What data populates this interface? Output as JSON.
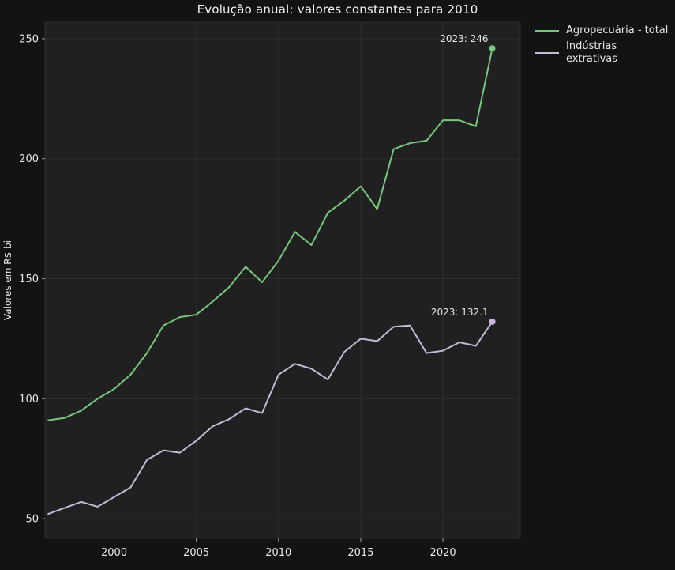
{
  "chart_data": {
    "type": "line",
    "title": "Evolução anual: valores constantes para 2010",
    "ylabel": "Valores em R$ bi",
    "xlabel": "",
    "x": [
      1996,
      1997,
      1998,
      1999,
      2000,
      2001,
      2002,
      2003,
      2004,
      2005,
      2006,
      2007,
      2008,
      2009,
      2010,
      2011,
      2012,
      2013,
      2014,
      2015,
      2016,
      2017,
      2018,
      2019,
      2020,
      2021,
      2022,
      2023
    ],
    "series": [
      {
        "name": "Agropecuária - total",
        "color": "#77c77d",
        "values": [
          91,
          92,
          95,
          100,
          104,
          110,
          119,
          130.5,
          134,
          135,
          140.5,
          146.5,
          155,
          148.5,
          157.5,
          169.5,
          164,
          177.5,
          182.5,
          188.5,
          179,
          204,
          206.5,
          207.5,
          216,
          216,
          213.5,
          246
        ]
      },
      {
        "name": "Indústrias extrativas",
        "color": "#c6b9da",
        "values": [
          52,
          54.5,
          57,
          55,
          59,
          63,
          74.5,
          78.5,
          77.5,
          82.5,
          88.5,
          91.5,
          96,
          94,
          110,
          114.5,
          112.5,
          108,
          119.5,
          125,
          124,
          130,
          130.5,
          119,
          120,
          123.5,
          122,
          132.1
        ]
      }
    ],
    "xticks": [
      2000,
      2005,
      2010,
      2015,
      2020
    ],
    "yticks": [
      50,
      100,
      150,
      200,
      250
    ],
    "xlim": [
      1995.8,
      2024.7
    ],
    "ylim": [
      41.8,
      256.9
    ],
    "grid": true,
    "legend_position": "outside-upper-right",
    "annotations": [
      {
        "text": "2023: 246",
        "x": 2023,
        "y": 246
      },
      {
        "text": "2023: 132.1",
        "x": 2023,
        "y": 132.1
      }
    ],
    "colors": {
      "figure_bg": "#131313",
      "plot_bg": "#202020",
      "grid": "#2e2e2e",
      "tick_text": "#e8e8e8",
      "title_text": "#f2f2f2",
      "annotation_text": "#e8e8e8",
      "tick_mark": "#9a9a9a"
    }
  },
  "legend": {
    "items": [
      {
        "label": "Agropecuária - total"
      },
      {
        "label": "Indústrias\nextrativas"
      }
    ]
  }
}
